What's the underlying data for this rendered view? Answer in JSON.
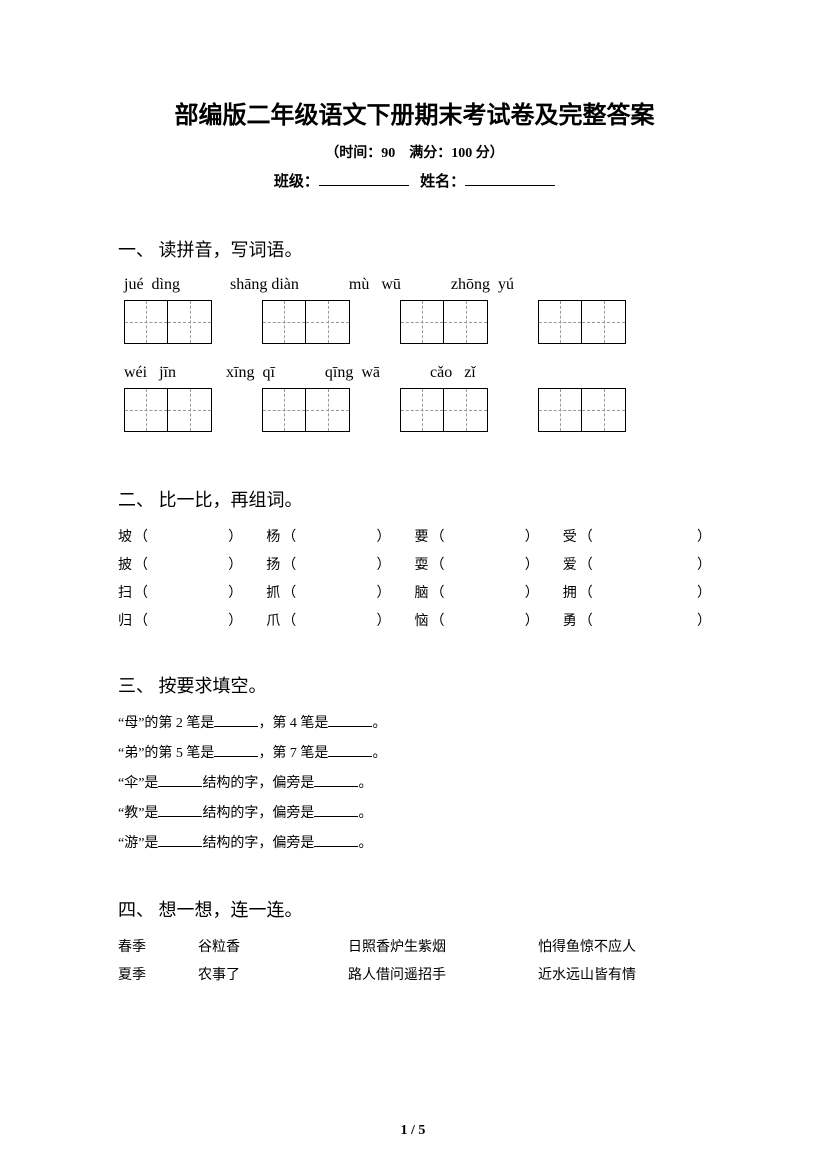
{
  "title": "部编版二年级语文下册期末考试卷及完整答案",
  "subtitle": "（时间：90　满分：100 分）",
  "info": {
    "class_label": "班级：",
    "name_label": "姓名："
  },
  "s1": {
    "heading": "一、 读拼音，写词语。",
    "row1": [
      "jué  dìng",
      "shāng diàn",
      "mù   wū",
      "zhōng  yú"
    ],
    "row2": [
      "wéi   jīn",
      "xīng  qī",
      "qīng  wā",
      "cǎo   zǐ"
    ]
  },
  "s2": {
    "heading": "二、 比一比，再组词。",
    "rows": [
      [
        "坡",
        "杨",
        "要",
        "受"
      ],
      [
        "披",
        "扬",
        "耍",
        "爱"
      ],
      [
        "扫",
        "抓",
        "脑",
        "拥"
      ],
      [
        "归",
        "爪",
        "恼",
        "勇"
      ]
    ]
  },
  "s3": {
    "heading": "三、 按要求填空。",
    "lines": [
      {
        "a": "“母”的第 2 笔是",
        "b": "，第 4 笔是",
        "c": "。"
      },
      {
        "a": "“弟”的第 5 笔是",
        "b": "，第 7 笔是",
        "c": "。"
      },
      {
        "a": "“伞”是",
        "b": "结构的字，偏旁是",
        "c": "。"
      },
      {
        "a": "“教”是",
        "b": "结构的字，偏旁是",
        "c": "。"
      },
      {
        "a": "“游”是",
        "b": "结构的字，偏旁是",
        "c": "。"
      }
    ]
  },
  "s4": {
    "heading": "四、 想一想，连一连。",
    "rows": [
      [
        "春季",
        "谷粒香",
        "日照香炉生紫烟",
        "怕得鱼惊不应人"
      ],
      [
        "夏季",
        "农事了",
        "路人借问遥招手",
        "近水远山皆有情"
      ]
    ]
  },
  "page": "1 / 5"
}
